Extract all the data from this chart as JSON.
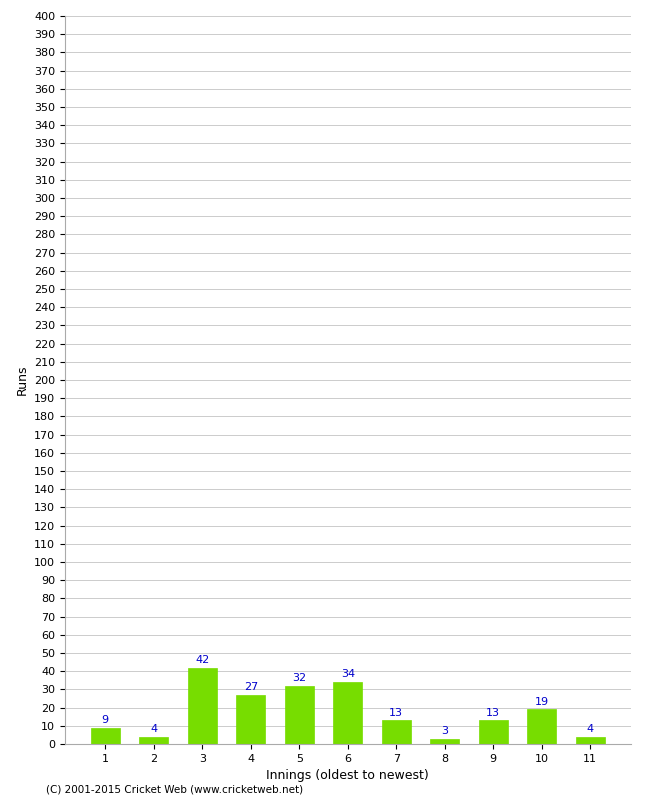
{
  "title": "",
  "categories": [
    "1",
    "2",
    "3",
    "4",
    "5",
    "6",
    "7",
    "8",
    "9",
    "10",
    "11"
  ],
  "values": [
    9,
    4,
    42,
    27,
    32,
    34,
    13,
    3,
    13,
    19,
    4
  ],
  "bar_color": "#77dd00",
  "bar_edge_color": "#77dd00",
  "xlabel": "Innings (oldest to newest)",
  "ylabel": "Runs",
  "ylim": [
    0,
    400
  ],
  "ytick_step": 10,
  "label_color": "#0000cc",
  "label_fontsize": 8,
  "axis_label_fontsize": 9,
  "tick_fontsize": 8,
  "background_color": "#ffffff",
  "grid_color": "#cccccc",
  "copyright": "(C) 2001-2015 Cricket Web (www.cricketweb.net)"
}
